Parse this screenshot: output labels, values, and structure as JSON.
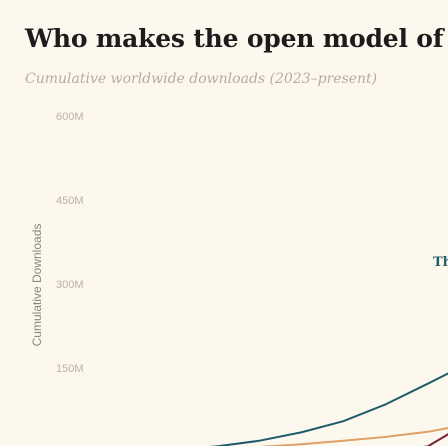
{
  "page": {
    "title": "Who makes the open model of choic",
    "subtitle": "Cumulative worldwide downloads (2023–present)"
  },
  "chart_data": {
    "type": "line",
    "title": "Who makes the open model of choic",
    "subtitle": "Cumulative worldwide downloads (2023–present)",
    "ylabel": "Cumulative Downloads",
    "xlabel": "",
    "y_ticks": [
      "600M",
      "450M",
      "300M",
      "150M"
    ],
    "y_tick_values": [
      600,
      450,
      300,
      150
    ],
    "ylim": [
      0,
      640
    ],
    "y_unit": "M",
    "grid": false,
    "x": [
      0,
      1,
      2,
      3,
      4,
      5,
      6,
      7,
      8,
      9
    ],
    "series": [
      {
        "color": "#1f5b6b",
        "label": "Th",
        "values": [
          0,
          1,
          4,
          10,
          20,
          35,
          55,
          85,
          122,
          160
        ]
      },
      {
        "color": "#e0a06a",
        "label": "",
        "values": [
          0,
          1,
          2,
          5,
          9,
          14,
          20,
          27,
          36,
          50
        ]
      },
      {
        "color": "#7a1f3d",
        "label": "",
        "values": [
          0,
          0,
          0,
          0,
          0,
          0,
          0,
          1,
          10,
          55
        ]
      }
    ]
  }
}
